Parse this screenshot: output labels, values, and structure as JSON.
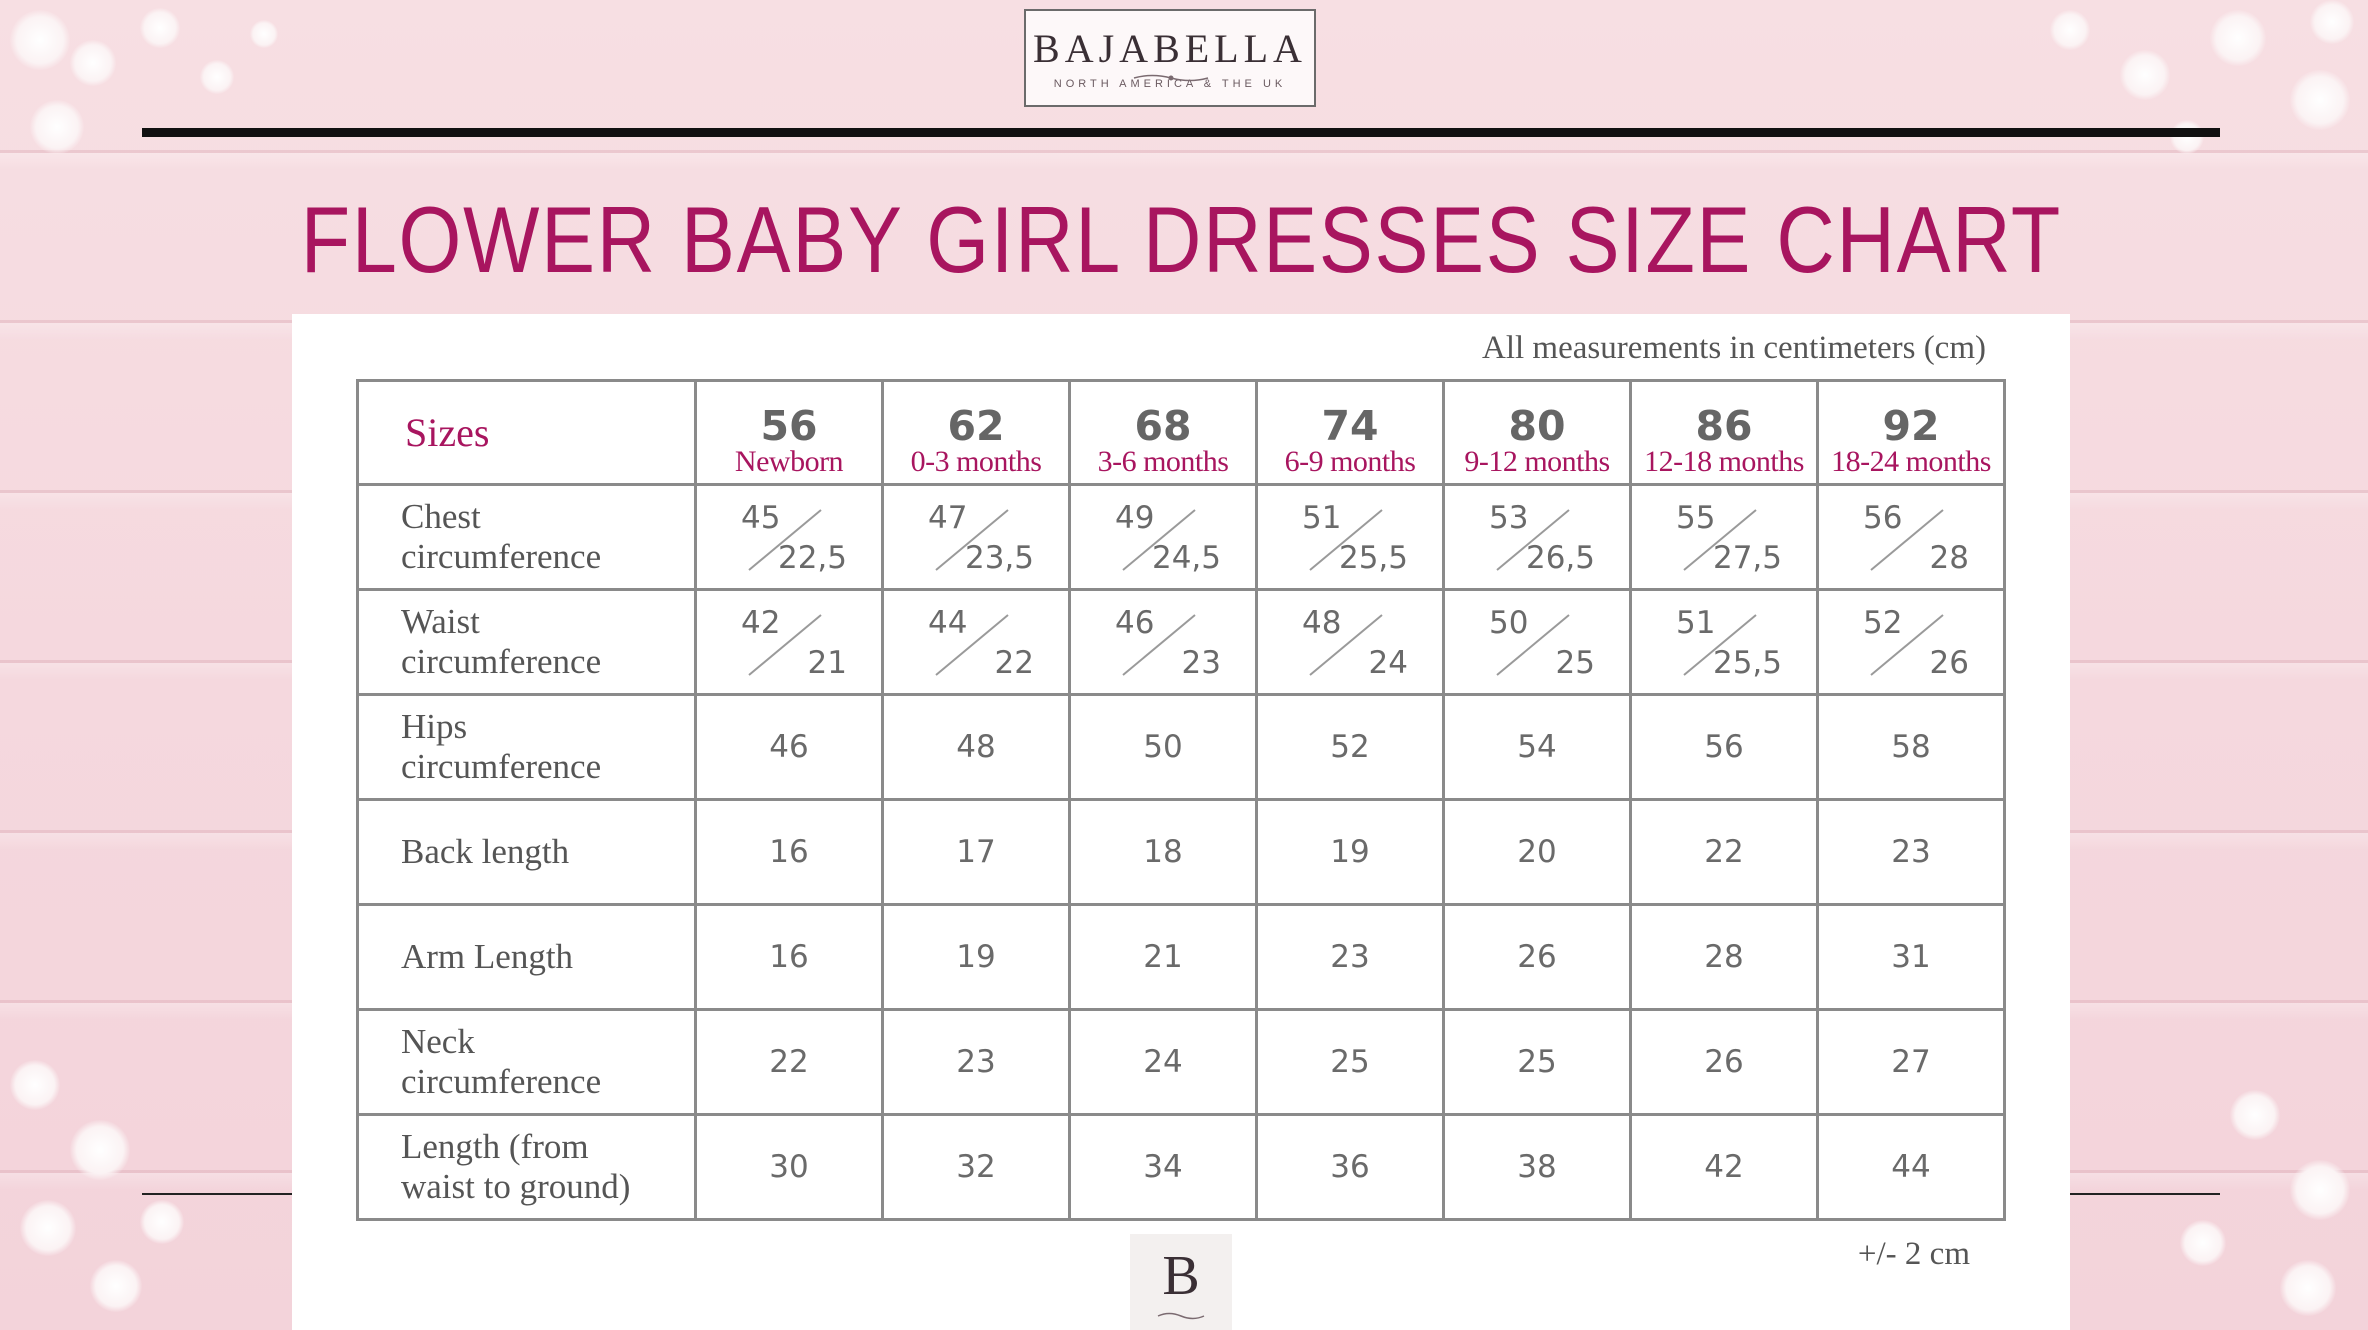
{
  "brand": {
    "name": "BAJABELLA",
    "tagline": "NORTH AMERICA & THE UK",
    "badge_letter": "B"
  },
  "title": "FLOWER BABY GIRL DRESSES SIZE CHART",
  "note": "All measurements in centimeters (cm)",
  "tolerance": "+/- 2 cm",
  "colors": {
    "accent": "#a8155f",
    "text": "#555555",
    "border": "#8a8a8a"
  },
  "table": {
    "header_label": "Sizes",
    "sizes": [
      {
        "num": "56",
        "age": "Newborn"
      },
      {
        "num": "62",
        "age": "0-3 months"
      },
      {
        "num": "68",
        "age": "3-6 months"
      },
      {
        "num": "74",
        "age": "6-9 months"
      },
      {
        "num": "80",
        "age": "9-12 months"
      },
      {
        "num": "86",
        "age": "12-18 months"
      },
      {
        "num": "92",
        "age": "18-24 months"
      }
    ],
    "rows": [
      {
        "label": [
          "Chest",
          "circumference"
        ],
        "split": true,
        "values": [
          [
            "45",
            "22,5"
          ],
          [
            "47",
            "23,5"
          ],
          [
            "49",
            "24,5"
          ],
          [
            "51",
            "25,5"
          ],
          [
            "53",
            "26,5"
          ],
          [
            "55",
            "27,5"
          ],
          [
            "56",
            "28"
          ]
        ]
      },
      {
        "label": [
          "Waist",
          "circumference"
        ],
        "split": true,
        "values": [
          [
            "42",
            "21"
          ],
          [
            "44",
            "22"
          ],
          [
            "46",
            "23"
          ],
          [
            "48",
            "24"
          ],
          [
            "50",
            "25"
          ],
          [
            "51",
            "25,5"
          ],
          [
            "52",
            "26"
          ]
        ]
      },
      {
        "label": [
          "Hips",
          "circumference"
        ],
        "split": false,
        "values": [
          "46",
          "48",
          "50",
          "52",
          "54",
          "56",
          "58"
        ]
      },
      {
        "label": [
          "Back length"
        ],
        "split": false,
        "values": [
          "16",
          "17",
          "18",
          "19",
          "20",
          "22",
          "23"
        ]
      },
      {
        "label": [
          "Arm Length"
        ],
        "split": false,
        "values": [
          "16",
          "19",
          "21",
          "23",
          "26",
          "28",
          "31"
        ]
      },
      {
        "label": [
          "Neck",
          "circumference"
        ],
        "split": false,
        "values": [
          "22",
          "23",
          "24",
          "25",
          "25",
          "26",
          "27"
        ]
      },
      {
        "label": [
          "Length (from",
          "waist to ground)"
        ],
        "split": false,
        "values": [
          "30",
          "32",
          "34",
          "36",
          "38",
          "42",
          "44"
        ]
      }
    ]
  }
}
